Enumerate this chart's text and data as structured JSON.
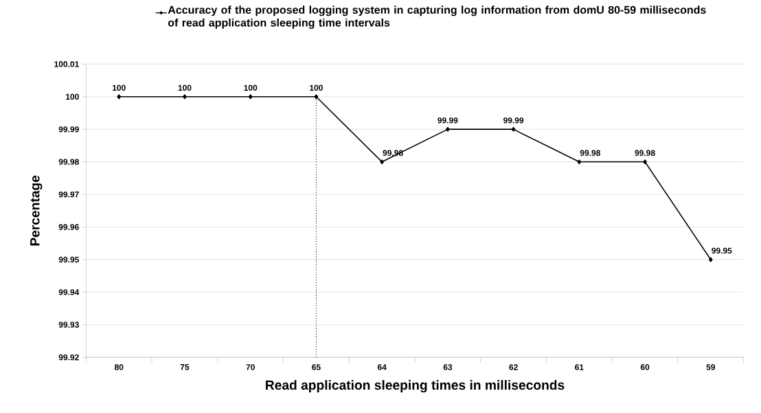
{
  "chart_data": {
    "type": "line",
    "xlabel": "Read application sleeping times in milliseconds",
    "ylabel": "Percentage",
    "categories": [
      "80",
      "75",
      "70",
      "65",
      "64",
      "63",
      "62",
      "61",
      "60",
      "59"
    ],
    "series": [
      {
        "name": "Accuracy of the proposed logging system in capturing log information from domU 80-59 milliseconds of read application sleeping time intervals",
        "color": "#000000",
        "values": [
          100,
          100,
          100,
          100,
          99.98,
          99.99,
          99.99,
          99.98,
          99.98,
          99.95
        ]
      }
    ],
    "ylim": [
      99.92,
      100.01
    ],
    "yticks": [
      99.92,
      99.93,
      99.94,
      99.95,
      99.96,
      99.97,
      99.98,
      99.99,
      100,
      100.01
    ],
    "grid": "y",
    "legend": "top",
    "marker": "diamond",
    "line_style": "solid",
    "data_labels": true,
    "ref_lines": [
      {
        "axis": "x",
        "value": "65",
        "line_style": "dotted",
        "color": "#000000"
      }
    ]
  }
}
